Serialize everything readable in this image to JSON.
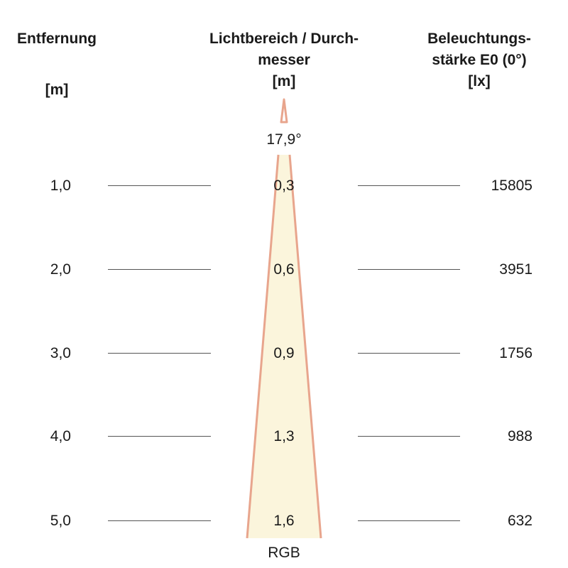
{
  "headers": {
    "distance": {
      "line1": "Entfernung",
      "unit": "[m]"
    },
    "beam": {
      "line1": "Lichtbereich / Durch-",
      "line2": "messer",
      "unit": "[m]"
    },
    "illuminance": {
      "line1": "Beleuchtungs-",
      "line2": "stärke E0 (0°)",
      "unit": "[lx]"
    }
  },
  "beam_angle": "17,9°",
  "beam_name": "RGB",
  "colors": {
    "beam_fill": "#fbf5dc",
    "beam_edge": "#e8a58d",
    "text": "#1a1a1a",
    "rule": "#555555"
  },
  "rows": [
    {
      "distance": "1,0",
      "diameter": "0,3",
      "lux": "15805"
    },
    {
      "distance": "2,0",
      "diameter": "0,6",
      "lux": "3951"
    },
    {
      "distance": "3,0",
      "diameter": "0,9",
      "lux": "1756"
    },
    {
      "distance": "4,0",
      "diameter": "1,3",
      "lux": "988"
    },
    {
      "distance": "5,0",
      "diameter": "1,6",
      "lux": "632"
    }
  ]
}
